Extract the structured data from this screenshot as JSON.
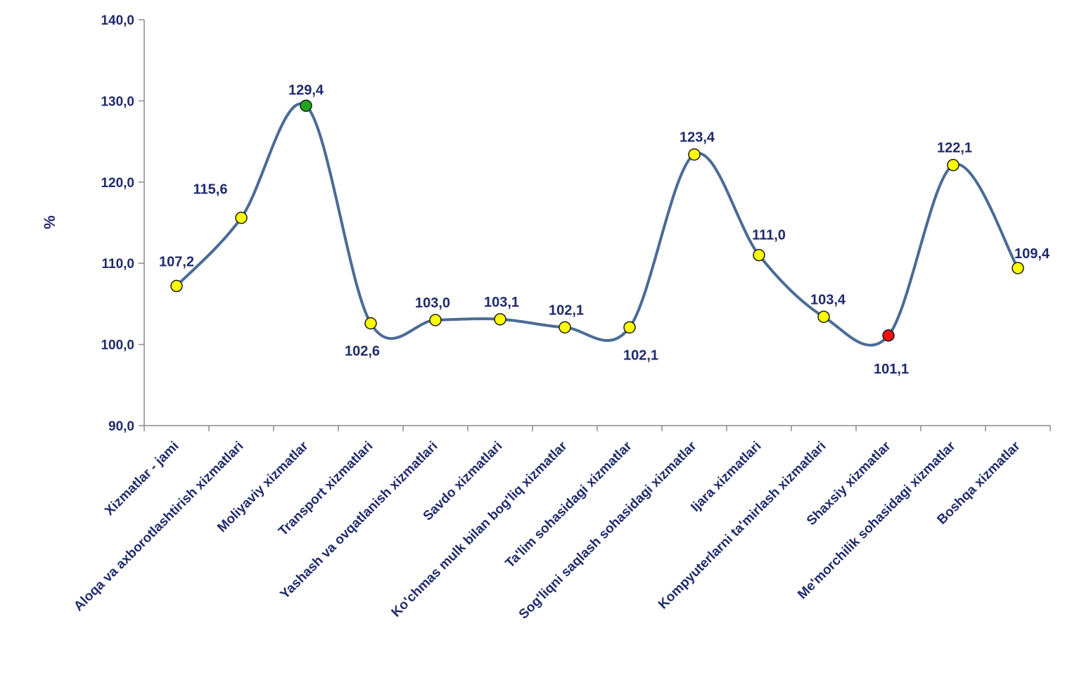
{
  "chart_data": {
    "type": "line",
    "smooth": true,
    "title": "",
    "xlabel": "",
    "ylabel": "%",
    "ylim": [
      90,
      140
    ],
    "yticks": [
      "90,0",
      "100,0",
      "110,0",
      "120,0",
      "130,0",
      "140,0"
    ],
    "grid": false,
    "legend": "none",
    "categories": [
      "Xizmatlar - jami",
      "Aloqa va axborotlashtirish  xizmatlari",
      "Moliyaviy xizmatlar",
      "Transport xizmatlari",
      "Yashash va ovqatlanish  xizmatlari",
      "Savdo xizmatlari",
      "Ko'chmas mulk bilan bog'liq xizmatlar",
      "Ta'lim sohasidagi  xizmatlar",
      "Sog'liqni saqlash sohasidagi xizmatlar",
      "Ijara xizmatlari",
      "Kompyuterlarni ta'mirlash xizmatlari",
      "Shaxsiy xizmatlar",
      "Me'morchilik sohasidagi xizmatlar",
      "Boshqa xizmatlar"
    ],
    "series": [
      {
        "values": [
          107.2,
          115.6,
          129.4,
          102.6,
          103.0,
          103.1,
          102.1,
          102.1,
          123.4,
          111.0,
          103.4,
          101.1,
          122.1,
          109.4
        ]
      }
    ],
    "data_labels": [
      "107,2",
      "115,6",
      "129,4",
      "102,6",
      "103,0",
      "103,1",
      "102,1",
      "102,1",
      "123,4",
      "111,0",
      "103,4",
      "101,1",
      "122,1",
      "109,4"
    ],
    "colors": {
      "line": "#4a6b96",
      "marker_default": "#ffff00",
      "marker_max": "#1fa81f",
      "marker_min": "#ee1111",
      "marker_stroke": "#1a1a1a",
      "axis": "#8c8c8c",
      "text": "#1f2a6b"
    }
  }
}
